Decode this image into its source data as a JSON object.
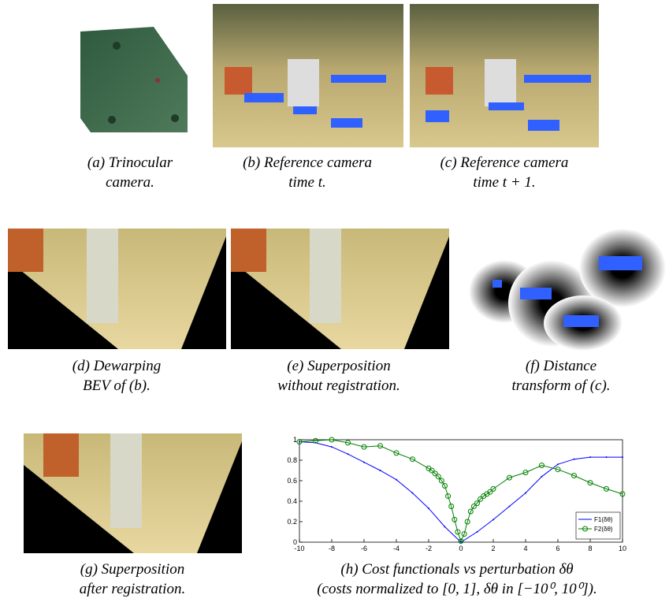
{
  "captions": [
    [
      "(a) Trinocular",
      "camera."
    ],
    [
      "(b) Reference camera",
      "time t."
    ],
    [
      "(c) Reference camera",
      "time t + 1."
    ],
    [
      "(d) Dewarping",
      "BEV of (b)."
    ],
    [
      "(e) Superposition",
      "without registration."
    ],
    [
      "(f) Distance",
      "transform of (c)."
    ],
    [
      "(g) Superposition",
      "after registration."
    ],
    [
      "(h) Cost functionals vs perturbation δθ",
      "(costs normalized to [0, 1], δθ in [−10⁰, 10⁰])."
    ]
  ],
  "chart_data": {
    "type": "line",
    "xlim": [
      -10,
      10
    ],
    "ylim": [
      0,
      1
    ],
    "xticks": [
      -10,
      -8,
      -6,
      -4,
      -2,
      0,
      2,
      4,
      6,
      8,
      10
    ],
    "yticks": [
      0,
      0.2,
      0.4,
      0.6,
      0.8,
      1
    ],
    "legend": "lower right",
    "series": [
      {
        "name": "F1(δθ)",
        "color": "#0000ff",
        "marker": "dot",
        "x": [
          -10,
          -9,
          -8,
          -7,
          -6,
          -5,
          -4,
          -3,
          -2,
          -1,
          0,
          1,
          2,
          3,
          4,
          5,
          6,
          7,
          8,
          9,
          10
        ],
        "values": [
          0.98,
          0.97,
          0.93,
          0.86,
          0.78,
          0.7,
          0.61,
          0.48,
          0.33,
          0.15,
          0.0,
          0.1,
          0.22,
          0.35,
          0.48,
          0.64,
          0.76,
          0.81,
          0.83,
          0.83,
          0.83
        ]
      },
      {
        "name": "F2(δθ)",
        "color": "#008000",
        "marker": "circle",
        "x": [
          -10,
          -9,
          -8,
          -7,
          -6,
          -5,
          -4,
          -3,
          -2,
          -1.8,
          -1.6,
          -1.4,
          -1.2,
          -1,
          -0.8,
          -0.6,
          -0.4,
          -0.2,
          0,
          0.2,
          0.4,
          0.6,
          0.8,
          1,
          1.2,
          1.4,
          1.6,
          1.8,
          2,
          3,
          4,
          5,
          6,
          7,
          8,
          9,
          10
        ],
        "values": [
          0.98,
          0.99,
          1.0,
          0.97,
          0.93,
          0.94,
          0.87,
          0.81,
          0.72,
          0.7,
          0.67,
          0.64,
          0.6,
          0.55,
          0.45,
          0.35,
          0.22,
          0.1,
          0.01,
          0.08,
          0.2,
          0.3,
          0.35,
          0.38,
          0.42,
          0.45,
          0.47,
          0.49,
          0.52,
          0.63,
          0.68,
          0.75,
          0.71,
          0.65,
          0.58,
          0.52,
          0.47
        ]
      }
    ]
  }
}
